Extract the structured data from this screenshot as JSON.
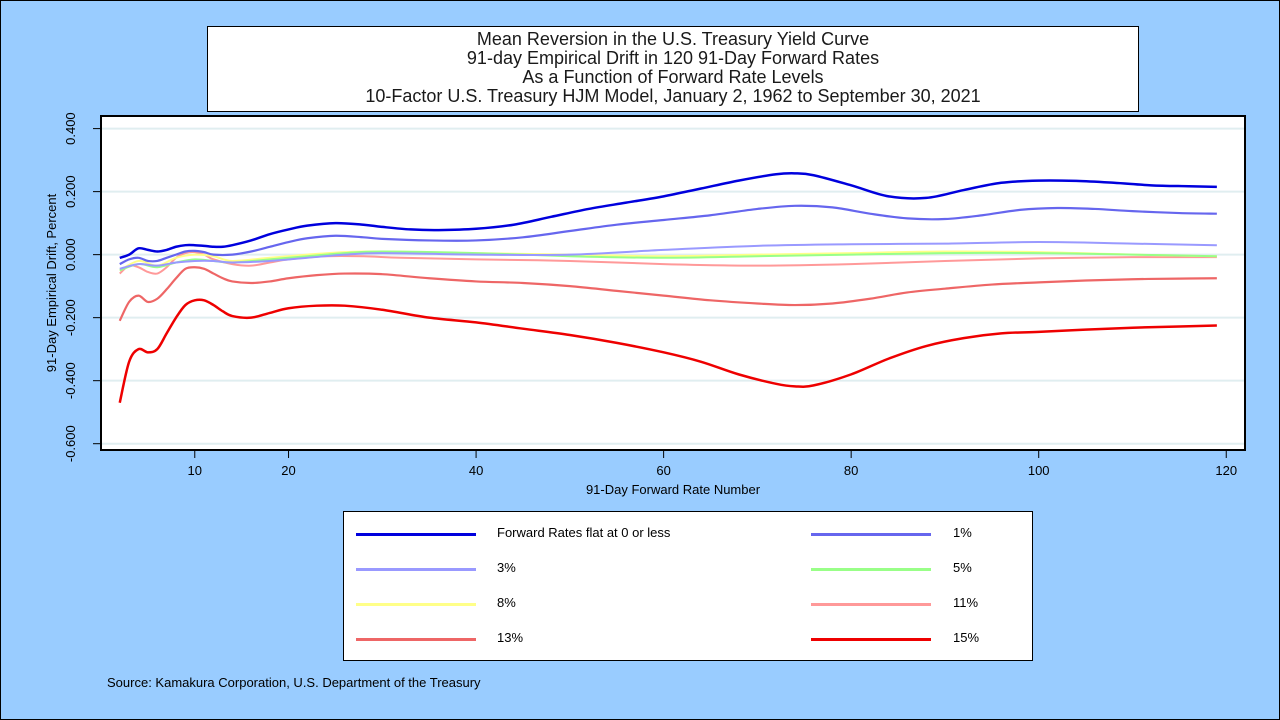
{
  "chart_data": {
    "type": "line",
    "title_lines": [
      "Mean Reversion in the U.S. Treasury Yield Curve",
      "91-day Empirical Drift in 120 91-Day Forward Rates",
      "As a Function of Forward Rate Levels",
      "10-Factor U.S. Treasury HJM Model, January 2, 1962 to September 30, 2021"
    ],
    "xlabel": "91-Day Forward Rate Number",
    "ylabel": "91-Day Empirical Drift, Percent",
    "xlim": [
      0,
      122
    ],
    "ylim": [
      -0.62,
      0.44
    ],
    "xticks": [
      10,
      20,
      40,
      60,
      80,
      100,
      120
    ],
    "yticks": [
      0.4,
      0.2,
      0.0,
      -0.2,
      -0.4,
      -0.6
    ],
    "ytick_labels": [
      "0.400",
      "0.200",
      "0.000",
      "-0.200",
      "-0.400",
      "-0.600"
    ],
    "grid": "horizontal",
    "series": [
      {
        "name": "Forward Rates flat at 0 or less",
        "color": "#0000dd",
        "width": 2.5,
        "x": [
          2,
          3,
          4,
          5,
          6,
          7,
          8,
          9,
          10,
          11,
          12,
          13,
          14,
          16,
          18,
          20,
          22,
          25,
          28,
          30,
          33,
          36,
          40,
          44,
          48,
          52,
          56,
          60,
          64,
          68,
          72,
          74,
          76,
          80,
          84,
          88,
          92,
          96,
          100,
          104,
          108,
          112,
          116,
          119
        ],
        "y": [
          -0.01,
          0.0,
          0.02,
          0.015,
          0.01,
          0.015,
          0.025,
          0.03,
          0.03,
          0.028,
          0.025,
          0.025,
          0.03,
          0.045,
          0.065,
          0.08,
          0.092,
          0.1,
          0.095,
          0.088,
          0.08,
          0.078,
          0.082,
          0.095,
          0.12,
          0.145,
          0.165,
          0.185,
          0.21,
          0.235,
          0.255,
          0.258,
          0.252,
          0.22,
          0.185,
          0.18,
          0.205,
          0.228,
          0.235,
          0.234,
          0.228,
          0.22,
          0.217,
          0.215
        ]
      },
      {
        "name": "1%",
        "color": "#6666ee",
        "width": 2.2,
        "x": [
          2,
          3,
          4,
          5,
          6,
          7,
          8,
          9,
          10,
          11,
          12,
          14,
          16,
          18,
          20,
          22,
          25,
          28,
          30,
          35,
          40,
          45,
          50,
          55,
          60,
          65,
          70,
          74,
          78,
          82,
          86,
          90,
          94,
          98,
          102,
          106,
          110,
          115,
          119
        ],
        "y": [
          -0.03,
          -0.015,
          -0.01,
          -0.02,
          -0.02,
          -0.01,
          0.0,
          0.01,
          0.012,
          0.008,
          0.0,
          0.0,
          0.01,
          0.025,
          0.04,
          0.052,
          0.06,
          0.055,
          0.05,
          0.045,
          0.045,
          0.055,
          0.075,
          0.095,
          0.11,
          0.125,
          0.145,
          0.155,
          0.15,
          0.13,
          0.115,
          0.113,
          0.125,
          0.142,
          0.148,
          0.145,
          0.138,
          0.132,
          0.13
        ]
      },
      {
        "name": "3%",
        "color": "#9999ff",
        "width": 2,
        "x": [
          2,
          4,
          6,
          8,
          10,
          12,
          14,
          18,
          22,
          26,
          30,
          40,
          50,
          60,
          70,
          80,
          90,
          100,
          110,
          119
        ],
        "y": [
          -0.045,
          -0.03,
          -0.035,
          -0.025,
          -0.02,
          -0.02,
          -0.025,
          -0.02,
          -0.01,
          0.0,
          0.005,
          0.0,
          0.0,
          0.015,
          0.028,
          0.033,
          0.035,
          0.04,
          0.035,
          0.03
        ]
      },
      {
        "name": "5%",
        "color": "#99ff88",
        "width": 2,
        "x": [
          2,
          4,
          6,
          8,
          10,
          12,
          14,
          18,
          22,
          26,
          30,
          40,
          50,
          60,
          70,
          80,
          90,
          100,
          110,
          119
        ],
        "y": [
          -0.05,
          -0.03,
          -0.04,
          -0.025,
          -0.015,
          -0.02,
          -0.025,
          -0.015,
          -0.005,
          0.005,
          0.01,
          0.005,
          -0.005,
          -0.01,
          -0.005,
          0.0,
          0.005,
          0.005,
          0.0,
          -0.005
        ]
      },
      {
        "name": "8%",
        "color": "#ffff88",
        "width": 2,
        "x": [
          2,
          4,
          6,
          8,
          10,
          12,
          14,
          18,
          22,
          26,
          30,
          40,
          50,
          60,
          70,
          80,
          90,
          100,
          110,
          119
        ],
        "y": [
          -0.05,
          -0.02,
          -0.035,
          -0.01,
          0.0,
          -0.005,
          -0.02,
          -0.01,
          0.0,
          0.008,
          0.01,
          0.005,
          0.0,
          -0.005,
          0.0,
          0.005,
          0.01,
          0.008,
          0.0,
          -0.005
        ]
      },
      {
        "name": "11%",
        "color": "#ff9999",
        "width": 2,
        "x": [
          2,
          3,
          4,
          5,
          6,
          7,
          8,
          9,
          10,
          11,
          12,
          14,
          16,
          18,
          20,
          24,
          28,
          32,
          40,
          50,
          60,
          70,
          80,
          90,
          100,
          110,
          119
        ],
        "y": [
          -0.06,
          -0.035,
          -0.04,
          -0.055,
          -0.06,
          -0.04,
          -0.01,
          0.005,
          0.008,
          0.0,
          -0.015,
          -0.03,
          -0.035,
          -0.025,
          -0.015,
          -0.005,
          -0.005,
          -0.01,
          -0.015,
          -0.02,
          -0.03,
          -0.035,
          -0.03,
          -0.02,
          -0.012,
          -0.008,
          -0.008
        ]
      },
      {
        "name": "13%",
        "color": "#ee6666",
        "width": 2.2,
        "x": [
          2,
          3,
          4,
          5,
          6,
          7,
          8,
          9,
          10,
          11,
          12,
          13,
          14,
          16,
          18,
          20,
          23,
          26,
          30,
          35,
          40,
          45,
          50,
          55,
          60,
          65,
          70,
          74,
          78,
          82,
          86,
          90,
          95,
          100,
          105,
          110,
          115,
          119
        ],
        "y": [
          -0.21,
          -0.15,
          -0.13,
          -0.15,
          -0.14,
          -0.11,
          -0.075,
          -0.045,
          -0.04,
          -0.045,
          -0.06,
          -0.075,
          -0.085,
          -0.09,
          -0.085,
          -0.075,
          -0.065,
          -0.06,
          -0.062,
          -0.075,
          -0.085,
          -0.09,
          -0.1,
          -0.115,
          -0.13,
          -0.145,
          -0.155,
          -0.16,
          -0.155,
          -0.14,
          -0.12,
          -0.108,
          -0.095,
          -0.088,
          -0.082,
          -0.078,
          -0.076,
          -0.075
        ]
      },
      {
        "name": "15%",
        "color": "#ee0000",
        "width": 2.5,
        "x": [
          2,
          3,
          4,
          5,
          6,
          7,
          8,
          9,
          10,
          11,
          12,
          13,
          14,
          16,
          18,
          20,
          23,
          26,
          30,
          35,
          40,
          45,
          50,
          55,
          60,
          64,
          68,
          72,
          74,
          76,
          80,
          84,
          88,
          92,
          96,
          100,
          105,
          110,
          115,
          119
        ],
        "y": [
          -0.47,
          -0.34,
          -0.3,
          -0.31,
          -0.3,
          -0.25,
          -0.2,
          -0.16,
          -0.145,
          -0.145,
          -0.16,
          -0.18,
          -0.195,
          -0.2,
          -0.185,
          -0.17,
          -0.162,
          -0.162,
          -0.175,
          -0.2,
          -0.215,
          -0.235,
          -0.255,
          -0.28,
          -0.31,
          -0.34,
          -0.38,
          -0.41,
          -0.418,
          -0.415,
          -0.38,
          -0.33,
          -0.29,
          -0.265,
          -0.25,
          -0.245,
          -0.238,
          -0.232,
          -0.228,
          -0.225
        ]
      }
    ]
  },
  "source": "Source: Kamakura Corporation, U.S. Department of the Treasury"
}
